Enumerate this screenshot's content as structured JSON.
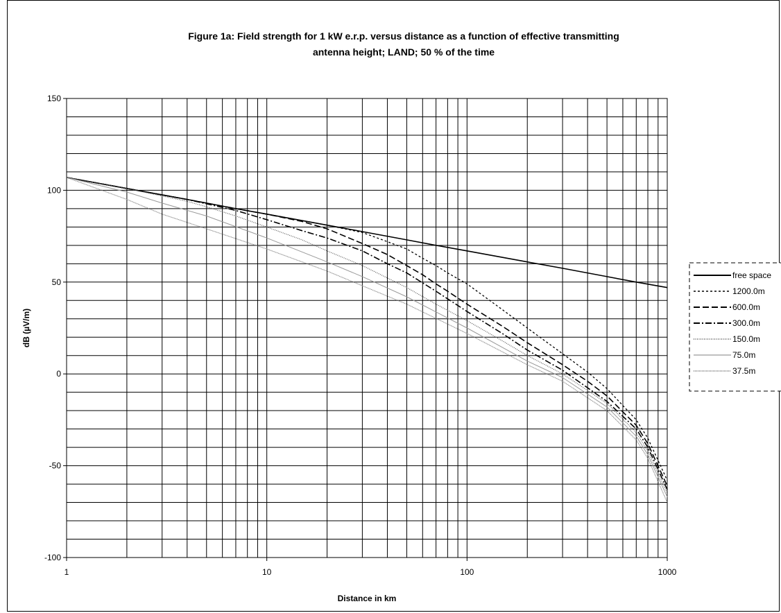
{
  "chart_data": {
    "type": "line",
    "title_line1": "Figure 1a: Field strength for 1 kW e.r.p. versus distance as a function of effective transmitting",
    "title_line2": "antenna height; LAND; 50 %  of the time",
    "xlabel": "Distance in km",
    "ylabel": "dB (µV/m)",
    "xscale": "log",
    "xlim": [
      1,
      1000
    ],
    "ylim": [
      -100,
      150
    ],
    "x_ticks": [
      1,
      10,
      100,
      1000
    ],
    "x_tick_labels": [
      "1",
      "10",
      "100",
      "1000"
    ],
    "y_ticks": [
      -100,
      -50,
      0,
      50,
      100,
      150
    ],
    "y_tick_labels": [
      "-100",
      "-50",
      "0",
      "50",
      "100",
      "150"
    ],
    "y_minor_step": 10,
    "grid": true,
    "legend_position": "right",
    "series": [
      {
        "name": "free space",
        "style": "solid",
        "color": "#000000",
        "x": [
          1,
          2,
          3,
          4,
          5,
          7,
          10,
          20,
          30,
          50,
          70,
          100,
          200,
          300,
          500,
          700,
          1000
        ],
        "y": [
          107,
          101,
          97.5,
          95,
          93,
          90,
          87,
          81,
          77.5,
          73,
          70,
          67,
          61,
          57.5,
          53,
          50,
          47
        ]
      },
      {
        "name": "1200.0m",
        "style": "dotted",
        "color": "#000000",
        "x": [
          1,
          2,
          4,
          7,
          10,
          20,
          30,
          40,
          50,
          60,
          70,
          80,
          100,
          150,
          200,
          300,
          400,
          500,
          700,
          800,
          1000
        ],
        "y": [
          107,
          101,
          95,
          90,
          87,
          81,
          77,
          72,
          68,
          63,
          59,
          55,
          49,
          35,
          25,
          11,
          1,
          -8,
          -25,
          -35,
          -58
        ]
      },
      {
        "name": "600.0m",
        "style": "dashed",
        "color": "#000000",
        "x": [
          1,
          2,
          4,
          7,
          10,
          15,
          20,
          30,
          40,
          50,
          60,
          70,
          80,
          100,
          150,
          200,
          300,
          400,
          500,
          700,
          800,
          1000
        ],
        "y": [
          107,
          101,
          95,
          90,
          87,
          83,
          79,
          71,
          65,
          59,
          54,
          49,
          45,
          38,
          26,
          17,
          5,
          -4,
          -12,
          -28,
          -38,
          -61
        ]
      },
      {
        "name": "300.0m",
        "style": "dashdot",
        "color": "#000000",
        "x": [
          1,
          2,
          4,
          7,
          10,
          15,
          20,
          30,
          40,
          50,
          70,
          100,
          150,
          200,
          300,
          500,
          700,
          800,
          1000
        ],
        "y": [
          107,
          101,
          95,
          89,
          84,
          78,
          74,
          67,
          60,
          55,
          45,
          34,
          22,
          13,
          2,
          -15,
          -30,
          -40,
          -63
        ]
      },
      {
        "name": "150.0m",
        "style": "dotted-gray",
        "color": "#555555",
        "x": [
          1,
          2,
          4,
          5,
          7,
          10,
          15,
          20,
          30,
          50,
          70,
          100,
          150,
          200,
          300,
          500,
          700,
          800,
          1000
        ],
        "y": [
          107,
          101,
          94,
          91,
          86,
          80,
          73,
          67,
          59,
          47,
          38,
          29,
          18,
          10,
          0,
          -16,
          -32,
          -42,
          -65
        ]
      },
      {
        "name": "75.0m",
        "style": "solid-gray",
        "color": "#888888",
        "x": [
          1,
          2,
          3,
          5,
          10,
          20,
          30,
          50,
          100,
          200,
          300,
          500,
          700,
          800,
          1000
        ],
        "y": [
          107,
          99,
          93,
          86,
          74,
          61,
          53,
          42,
          25,
          7,
          -2,
          -18,
          -34,
          -44,
          -67
        ]
      },
      {
        "name": "37.5m",
        "style": "dotted-light",
        "color": "#777777",
        "x": [
          1,
          2,
          3,
          5,
          10,
          20,
          30,
          50,
          100,
          200,
          300,
          500,
          700,
          800,
          1000
        ],
        "y": [
          107,
          95,
          87,
          79,
          68,
          56,
          48,
          38,
          22,
          5,
          -4,
          -20,
          -36,
          -46,
          -70
        ]
      }
    ]
  }
}
